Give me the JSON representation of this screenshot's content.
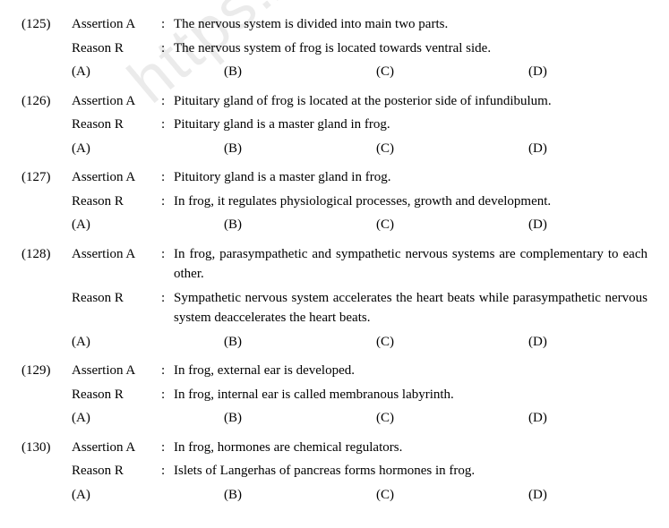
{
  "watermark": "https://www.st",
  "questions": [
    {
      "num": "(125)",
      "assertion_label": "Assertion A",
      "assertion": "The nervous system is divided into main two parts.",
      "reason_label": "Reason R",
      "reason": "The nervous system of frog is located towards ventral side.",
      "opts": [
        "(A)",
        "(B)",
        "(C)",
        "(D)"
      ]
    },
    {
      "num": "(126)",
      "assertion_label": "Assertion A",
      "assertion": "Pituitary gland of frog is located at the posterior side of infundibulum.",
      "reason_label": "Reason R",
      "reason": "Pituitary gland is a master gland in frog.",
      "opts": [
        "(A)",
        "(B)",
        "(C)",
        "(D)"
      ]
    },
    {
      "num": "(127)",
      "assertion_label": "Assertion A",
      "assertion": "Pituitory gland is a master gland in frog.",
      "reason_label": "Reason R",
      "reason": "In frog, it regulates physiological processes, growth and development.",
      "opts": [
        "(A)",
        "(B)",
        "(C)",
        "(D)"
      ]
    },
    {
      "num": "(128)",
      "assertion_label": "Assertion A",
      "assertion": "In frog, parasympathetic and sympathetic nervous systems are complementary to each other.",
      "reason_label": "Reason R",
      "reason": "Sympathetic nervous system accelerates the heart beats while parasympathetic nervous system deaccelerates the heart beats.",
      "opts": [
        "(A)",
        "(B)",
        "(C)",
        "(D)"
      ]
    },
    {
      "num": "(129)",
      "assertion_label": "Assertion A",
      "assertion": "In frog, external ear is developed.",
      "reason_label": "Reason R",
      "reason": "In frog, internal ear is called membranous labyrinth.",
      "opts": [
        "(A)",
        "(B)",
        "(C)",
        "(D)"
      ]
    },
    {
      "num": "(130)",
      "assertion_label": "Assertion A",
      "assertion": "In frog, hormones are chemical regulators.",
      "reason_label": "Reason R",
      "reason": "Islets of Langerhas of pancreas forms hormones in frog.",
      "opts": [
        "(A)",
        "(B)",
        "(C)",
        "(D)"
      ]
    }
  ]
}
